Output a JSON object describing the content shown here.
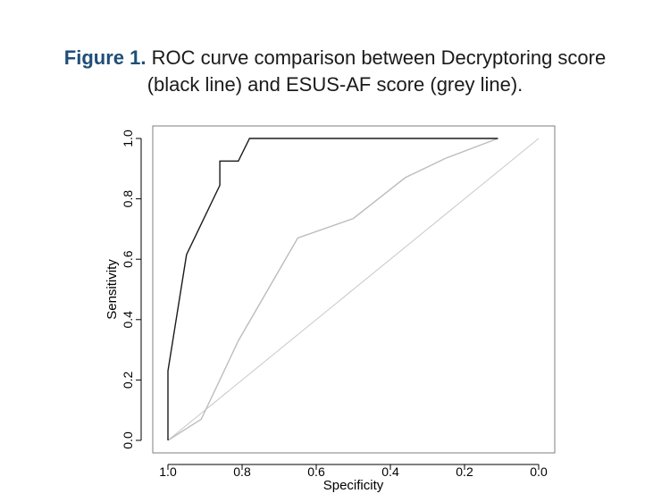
{
  "caption": {
    "label": "Figure 1.",
    "line1": "ROC curve comparison between Decryptoring score",
    "line2": "(black line) and ESUS-AF score (grey line)."
  },
  "chart_data": {
    "type": "line",
    "xlabel": "Specificity",
    "ylabel": "Sensitivity",
    "xlim": [
      1.0,
      0.0
    ],
    "ylim": [
      0.0,
      1.0
    ],
    "x_reversed": true,
    "xticks": [
      "1.0",
      "0.8",
      "0.6",
      "0.4",
      "0.2",
      "0.0"
    ],
    "xtick_values": [
      1.0,
      0.8,
      0.6,
      0.4,
      0.2,
      0.0
    ],
    "yticks": [
      "0.0",
      "0.2",
      "0.4",
      "0.6",
      "0.8",
      "1.0"
    ],
    "ytick_values": [
      0.0,
      0.2,
      0.4,
      0.6,
      0.8,
      1.0
    ],
    "grid": false,
    "reference_line": {
      "from": [
        1.0,
        0.0
      ],
      "to": [
        0.0,
        1.0
      ],
      "color": "#c8c8c8"
    },
    "series": [
      {
        "color": "#1a1a1a",
        "points": [
          [
            1.0,
            0.0
          ],
          [
            1.0,
            0.23
          ],
          [
            0.95,
            0.615
          ],
          [
            0.86,
            0.845
          ],
          [
            0.86,
            0.925
          ],
          [
            0.81,
            0.925
          ],
          [
            0.78,
            1.0
          ],
          [
            0.11,
            1.0
          ]
        ]
      },
      {
        "color": "#bdbdbd",
        "points": [
          [
            1.0,
            0.0
          ],
          [
            0.91,
            0.07
          ],
          [
            0.81,
            0.33
          ],
          [
            0.65,
            0.67
          ],
          [
            0.5,
            0.735
          ],
          [
            0.36,
            0.87
          ],
          [
            0.25,
            0.935
          ],
          [
            0.11,
            1.0
          ]
        ]
      }
    ]
  }
}
